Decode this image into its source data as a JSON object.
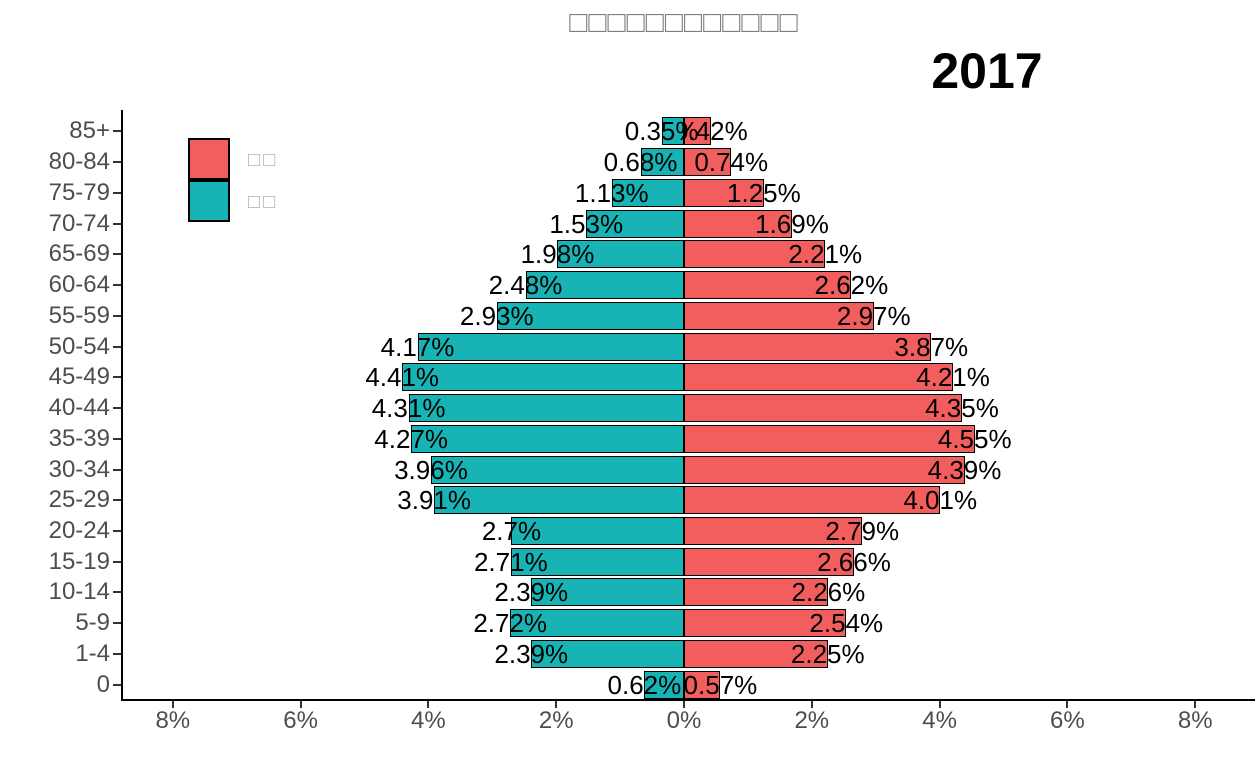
{
  "title": "□□□□□□□□□□□□",
  "year": "2017",
  "legend": {
    "items": [
      {
        "label": "□□",
        "color": "#F25E5D"
      },
      {
        "label": "□□",
        "color": "#17B3B5"
      }
    ]
  },
  "chart_data": {
    "type": "bar",
    "subtype": "population_pyramid",
    "title": "□□□□□□□□□□□□",
    "annotation": "2017",
    "orientation": "horizontal",
    "categories_top_to_bottom": [
      "85+",
      "80-84",
      "75-79",
      "70-74",
      "65-69",
      "60-64",
      "55-59",
      "50-54",
      "45-49",
      "40-44",
      "35-39",
      "30-34",
      "25-29",
      "20-24",
      "15-19",
      "10-14",
      "5-9",
      "1-4",
      "0"
    ],
    "series": [
      {
        "name": "□□",
        "side": "right",
        "color": "#F25E5D",
        "values": [
          0.42,
          0.74,
          1.25,
          1.69,
          2.21,
          2.62,
          2.97,
          3.87,
          4.21,
          4.35,
          4.55,
          4.39,
          4.01,
          2.79,
          2.66,
          2.26,
          2.54,
          2.25,
          0.57
        ],
        "labels": [
          "0.42%",
          "0.74%",
          "1.25%",
          "1.69%",
          "2.21%",
          "2.62%",
          "2.97%",
          "3.87%",
          "4.21%",
          "4.35%",
          "4.55%",
          "4.39%",
          "4.01%",
          "2.79%",
          "2.66%",
          "2.26%",
          "2.54%",
          "2.25%",
          "0.57%"
        ]
      },
      {
        "name": "□□",
        "side": "left",
        "color": "#17B3B5",
        "values": [
          0.35,
          0.68,
          1.13,
          1.53,
          1.98,
          2.48,
          2.93,
          4.17,
          4.41,
          4.31,
          4.27,
          3.96,
          3.91,
          2.7,
          2.71,
          2.39,
          2.72,
          2.39,
          0.62
        ],
        "labels": [
          "0.35%",
          "0.68%",
          "1.13%",
          "1.53%",
          "1.98%",
          "2.48%",
          "2.93%",
          "4.17%",
          "4.41%",
          "4.31%",
          "4.27%",
          "3.96%",
          "3.91%",
          "2.7%",
          "2.71%",
          "2.39%",
          "2.72%",
          "2.39%",
          "0.62%"
        ]
      }
    ],
    "x_ticks": [
      {
        "label": "8%",
        "value": -8
      },
      {
        "label": "6%",
        "value": -6
      },
      {
        "label": "4%",
        "value": -4
      },
      {
        "label": "2%",
        "value": -2
      },
      {
        "label": "0%",
        "value": 0
      },
      {
        "label": "2%",
        "value": 2
      },
      {
        "label": "4%",
        "value": 4
      },
      {
        "label": "6%",
        "value": 6
      },
      {
        "label": "8%",
        "value": 8
      }
    ],
    "xlim": [
      -8.8,
      8.8
    ],
    "ylabel": "",
    "xlabel": "",
    "grid": false,
    "legend_position": "upper-left-inside",
    "bar_label_position": "centered-on-bar-tip"
  }
}
